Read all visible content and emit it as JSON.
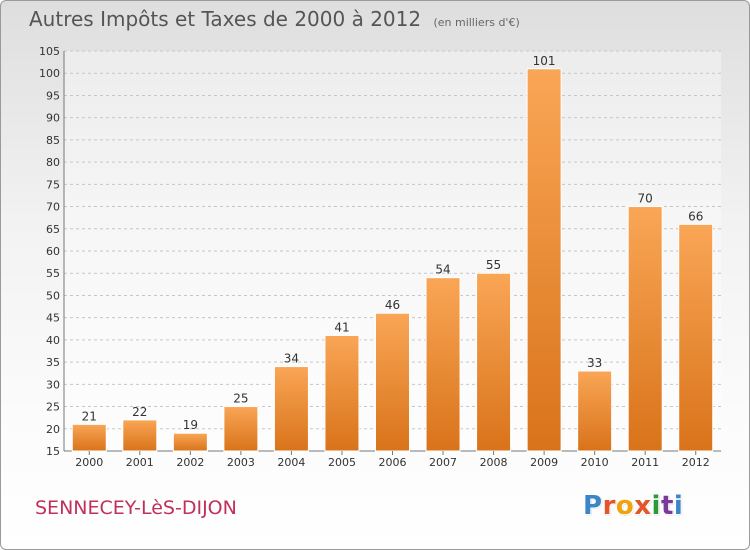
{
  "header": {
    "title": "Autres Impôts et Taxes de 2000 à 2012",
    "unit": "(en milliers d'€)"
  },
  "footer": {
    "commune": "SENNECEY-LèS-DIJON",
    "brand": "Proxiti",
    "brand_colors": [
      "#3a86c8",
      "#e2562a",
      "#f2a20d",
      "#e2562a",
      "#2b9a3a",
      "#7a3a9a",
      "#3a86c8"
    ]
  },
  "colors": {
    "bar_light": "#f9a656",
    "bar_dark": "#d9731a",
    "bar_edge": "#ffffff",
    "grid": "#c6c6c6",
    "axis_text": "#333333",
    "commune": "#c0305a"
  },
  "chart_data": {
    "type": "bar",
    "title": "Autres Impôts et Taxes de 2000 à 2012",
    "subtitle": "(en milliers d'€)",
    "categories": [
      "2000",
      "2001",
      "2002",
      "2003",
      "2004",
      "2005",
      "2006",
      "2007",
      "2008",
      "2009",
      "2010",
      "2011",
      "2012"
    ],
    "values": [
      21,
      22,
      19,
      25,
      34,
      41,
      46,
      54,
      55,
      101,
      33,
      70,
      66
    ],
    "ylim": [
      15,
      105
    ],
    "yticks": [
      15,
      20,
      25,
      30,
      35,
      40,
      45,
      50,
      55,
      60,
      65,
      70,
      75,
      80,
      85,
      90,
      95,
      100,
      105
    ],
    "grid": true,
    "data_labels": true
  }
}
